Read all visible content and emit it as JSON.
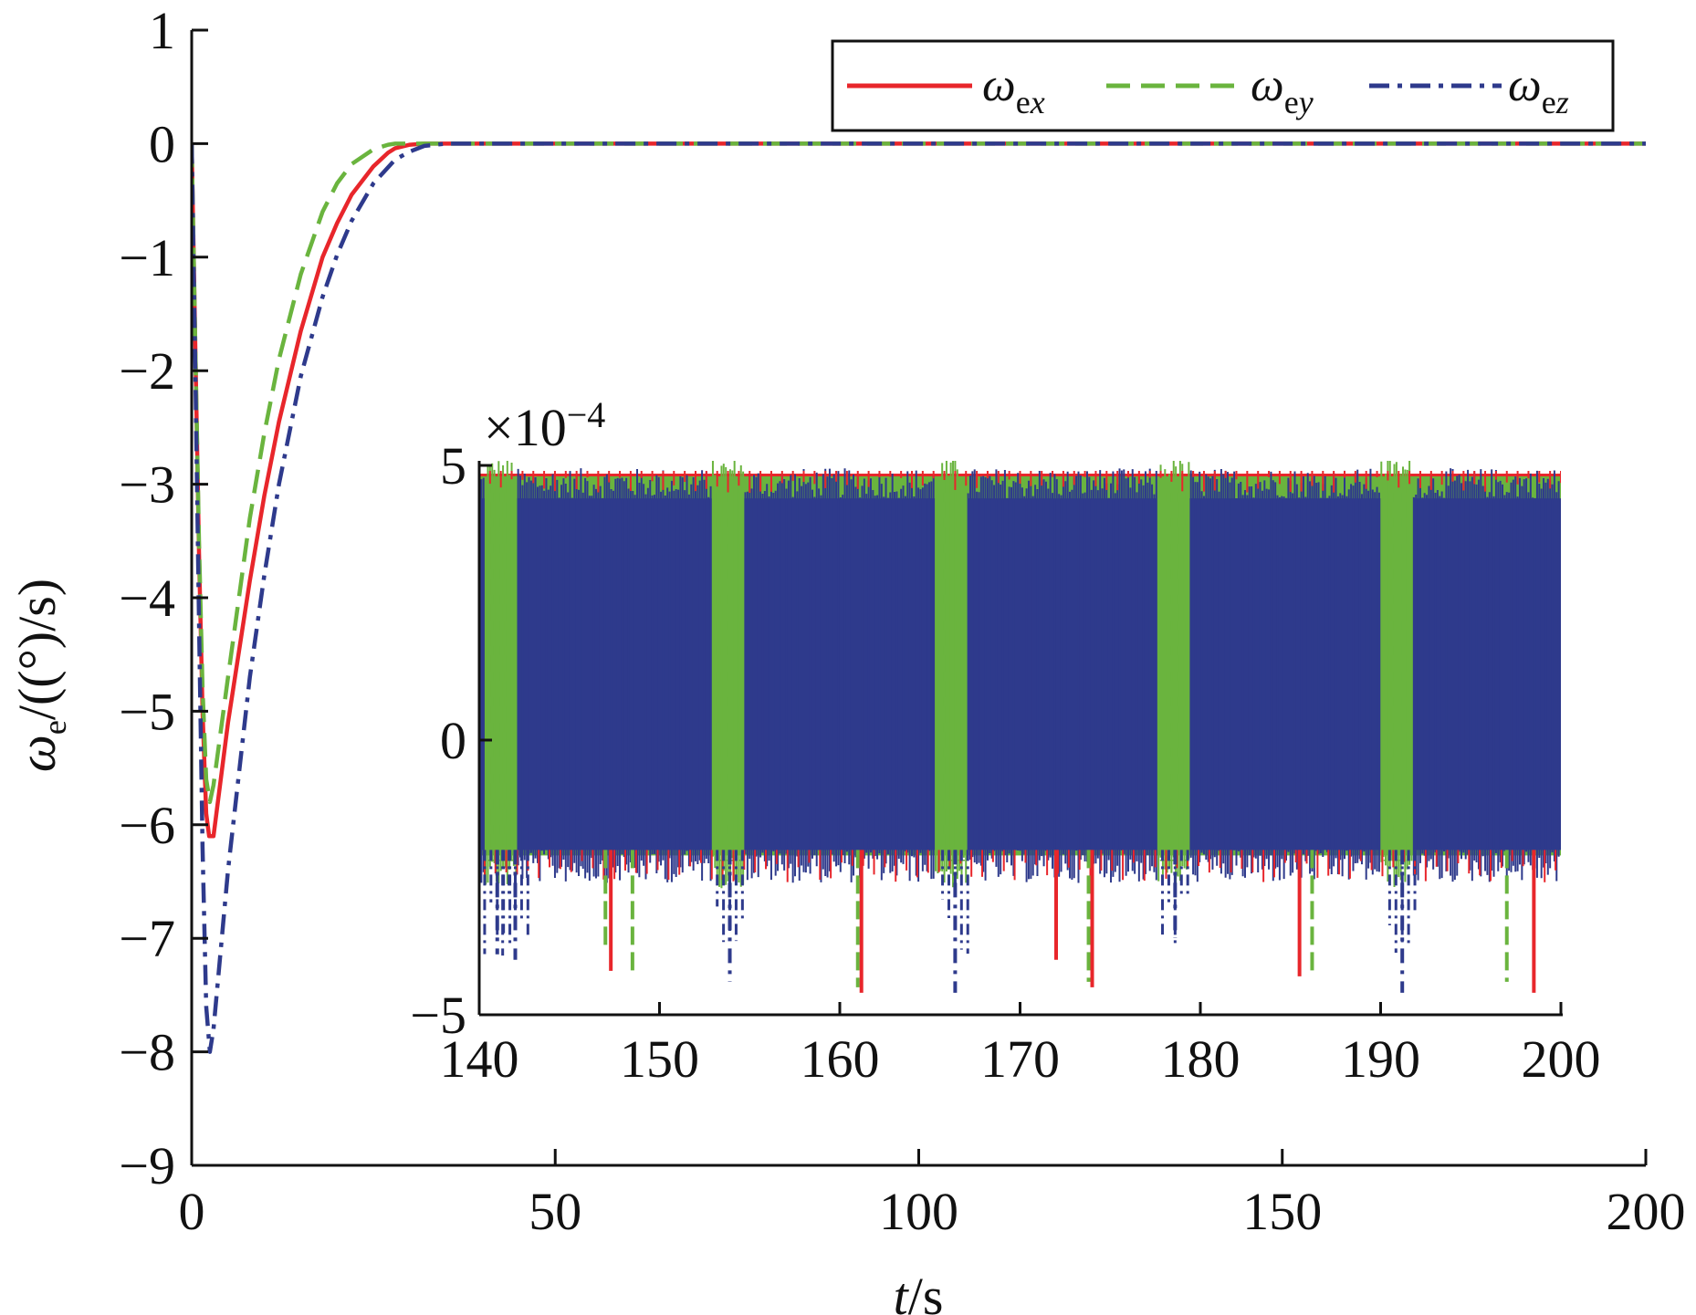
{
  "chart_data": [
    {
      "type": "line",
      "xlabel": "t/s",
      "ylabel": "ω_e/((°)/s)",
      "xlim": [
        0,
        200
      ],
      "ylim": [
        -9,
        1
      ],
      "xticks": [
        0,
        50,
        100,
        150,
        200
      ],
      "yticks": [
        1,
        0,
        -1,
        -2,
        -3,
        -4,
        -5,
        -6,
        -7,
        -8,
        -9
      ],
      "legend_position": "top-right",
      "series": [
        {
          "name": "ω_ex",
          "color": "#e8262b",
          "dash": "solid",
          "x": [
            0,
            0.5,
            1,
            1.5,
            2,
            2.4,
            3,
            5,
            8,
            10,
            12,
            15,
            18,
            20,
            22,
            25,
            27,
            28,
            30,
            32,
            35,
            50,
            100,
            150,
            200
          ],
          "y": [
            0,
            -1.8,
            -3.6,
            -5.0,
            -5.9,
            -6.1,
            -6.1,
            -5.1,
            -3.85,
            -3.1,
            -2.45,
            -1.65,
            -1.0,
            -0.7,
            -0.45,
            -0.2,
            -0.08,
            -0.04,
            -0.01,
            0,
            0,
            0,
            0,
            0,
            0
          ]
        },
        {
          "name": "ω_ey",
          "color": "#6ab43e",
          "dash": "dashed",
          "x": [
            0,
            0.5,
            1,
            1.5,
            2,
            2.5,
            3,
            5,
            8,
            10,
            12,
            15,
            18,
            20,
            22,
            25,
            27,
            28,
            30,
            50,
            100,
            150,
            200
          ],
          "y": [
            0,
            -1.8,
            -3.5,
            -4.8,
            -5.6,
            -5.8,
            -5.65,
            -4.7,
            -3.3,
            -2.55,
            -1.9,
            -1.15,
            -0.6,
            -0.35,
            -0.18,
            -0.05,
            -0.01,
            0,
            0,
            0,
            0,
            0,
            0
          ]
        },
        {
          "name": "ω_ez",
          "color": "#2e3a8c",
          "dash": "dashdot",
          "x": [
            0,
            0.5,
            1,
            1.5,
            2,
            2.5,
            3,
            5,
            8,
            10,
            12,
            15,
            18,
            20,
            22,
            25,
            28,
            30,
            32,
            35,
            50,
            100,
            150,
            200
          ],
          "y": [
            0,
            -2.0,
            -4.2,
            -6.2,
            -7.6,
            -8.0,
            -7.8,
            -6.4,
            -4.7,
            -3.8,
            -3.0,
            -2.05,
            -1.35,
            -0.98,
            -0.68,
            -0.35,
            -0.14,
            -0.07,
            -0.02,
            0,
            0,
            0,
            0,
            0
          ]
        }
      ]
    },
    {
      "type": "line",
      "inset": true,
      "xlim": [
        140,
        200
      ],
      "ylim": [
        -5,
        5
      ],
      "xticks": [
        140,
        150,
        160,
        170,
        180,
        190,
        200
      ],
      "yticks": [
        5,
        0,
        -5
      ],
      "yscale_label": "×10−4",
      "notes": "dense high-frequency oscillation between about 4.8 and -2 (×10^-4), with downward spikes to about -4.7 and green bursts near t=141, 153.5, 166, 178.5, 191",
      "series": [
        {
          "name": "ω_ex",
          "color": "#e8262b",
          "upper": 4.85,
          "lower": -2.0,
          "spikes_t": [
            147.3,
            161.2,
            172.0,
            174.0,
            185.5,
            198.5
          ],
          "spikes_v": [
            -4.2,
            -4.6,
            -4.0,
            -4.5,
            -4.3,
            -4.6
          ]
        },
        {
          "name": "ω_ey",
          "color": "#6ab43e",
          "upper": 4.8,
          "lower": -2.1,
          "bursts_t": [
            141.2,
            153.8,
            166.2,
            178.5,
            190.9
          ],
          "spikes_t": [
            147.0,
            148.5,
            161.0,
            173.8,
            186.2,
            197.0
          ],
          "spikes_v": [
            -3.8,
            -4.3,
            -4.5,
            -4.4,
            -4.3,
            -4.4
          ]
        },
        {
          "name": "ω_ez",
          "color": "#2e3a8c",
          "upper": 4.4,
          "lower": -2.0,
          "spikes_t": [
            141.0,
            142.0,
            153.9,
            166.4,
            178.6,
            191.2
          ],
          "spikes_v": [
            -3.9,
            -4.0,
            -4.4,
            -4.6,
            -3.6,
            -4.6
          ]
        }
      ]
    }
  ]
}
